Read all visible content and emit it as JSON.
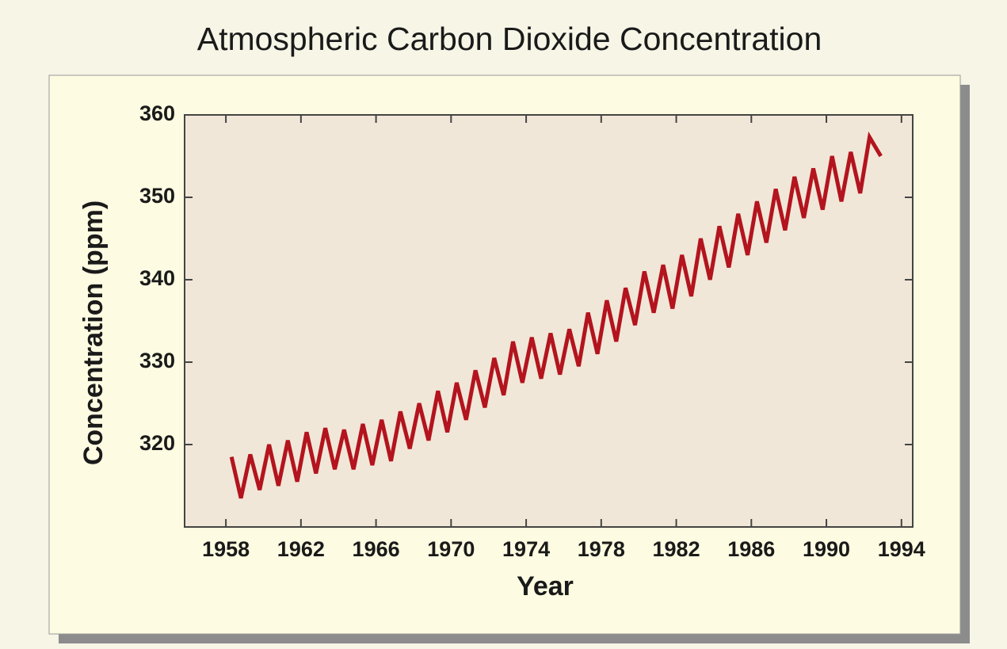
{
  "chart_data": {
    "type": "line",
    "title": "Atmospheric Carbon Dioxide Concentration",
    "x_label": "Year",
    "y_label": "Concentration (ppm)",
    "color": "#b3141e",
    "x": [
      1958.3,
      1958.8,
      1959.3,
      1959.8,
      1960.3,
      1960.8,
      1961.3,
      1961.8,
      1962.3,
      1962.8,
      1963.3,
      1963.8,
      1964.3,
      1964.8,
      1965.3,
      1965.8,
      1966.3,
      1966.8,
      1967.3,
      1967.8,
      1968.3,
      1968.8,
      1969.3,
      1969.8,
      1970.3,
      1970.8,
      1971.3,
      1971.8,
      1972.3,
      1972.8,
      1973.3,
      1973.8,
      1974.3,
      1974.8,
      1975.3,
      1975.8,
      1976.3,
      1976.8,
      1977.3,
      1977.8,
      1978.3,
      1978.8,
      1979.3,
      1979.8,
      1980.3,
      1980.8,
      1981.3,
      1981.8,
      1982.3,
      1982.8,
      1983.3,
      1983.8,
      1984.3,
      1984.8,
      1985.3,
      1985.8,
      1986.3,
      1986.8,
      1987.3,
      1987.8,
      1988.3,
      1988.8,
      1989.3,
      1989.8,
      1990.3,
      1990.8,
      1991.3,
      1991.8,
      1992.3,
      1992.9
    ],
    "values": [
      318.5,
      313.5,
      318.8,
      314.5,
      320,
      315,
      320.5,
      315.5,
      321.5,
      316.5,
      322,
      317,
      321.8,
      317,
      322.5,
      317.5,
      323,
      318,
      324,
      319.5,
      325,
      320.5,
      326.5,
      321.5,
      327.5,
      323,
      329,
      324.5,
      330.5,
      326,
      332.5,
      327.5,
      333,
      328,
      333.5,
      328.5,
      334,
      329.5,
      336,
      331,
      337.5,
      332.5,
      339,
      334.5,
      341,
      336,
      341.8,
      336.5,
      343,
      338,
      345,
      340,
      346.5,
      341.5,
      348,
      343,
      349.5,
      344.5,
      351,
      346,
      352.5,
      347.5,
      353.5,
      348.5,
      355,
      349.5,
      355.5,
      350.5,
      357.3,
      355
    ],
    "xlim": [
      1955.8,
      1994.6
    ],
    "ylim": [
      310,
      360
    ],
    "xticks": [
      1958,
      1962,
      1966,
      1970,
      1974,
      1978,
      1982,
      1986,
      1990,
      1994
    ],
    "yticks": [
      320,
      330,
      340,
      350,
      360
    ]
  }
}
